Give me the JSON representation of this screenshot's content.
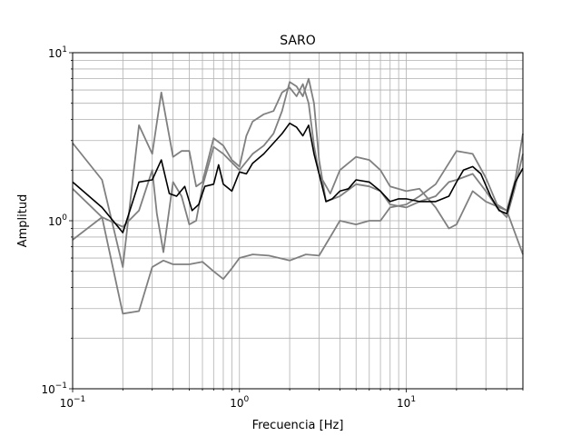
{
  "chart_data": {
    "type": "line",
    "title": "SARO",
    "xlabel": "Frecuencia [Hz]",
    "ylabel": "Amplitud",
    "xscale": "log",
    "yscale": "log",
    "xlim": [
      0.1,
      50
    ],
    "ylim": [
      0.1,
      10
    ],
    "grid": "both major and minor",
    "x_ticks": [
      {
        "value": 0.1,
        "base": "10",
        "exp": "−1"
      },
      {
        "value": 1,
        "base": "10",
        "exp": "0"
      },
      {
        "value": 10,
        "base": "10",
        "exp": "1"
      }
    ],
    "y_ticks": [
      {
        "value": 0.1,
        "base": "10",
        "exp": "−1"
      },
      {
        "value": 1,
        "base": "10",
        "exp": "0"
      },
      {
        "value": 10,
        "base": "10",
        "exp": "1"
      }
    ],
    "series": [
      {
        "color": "#808080",
        "points": [
          [
            0.1,
            2.9
          ],
          [
            0.15,
            1.75
          ],
          [
            0.2,
            0.53
          ],
          [
            0.25,
            3.7
          ],
          [
            0.3,
            2.5
          ],
          [
            0.34,
            5.8
          ],
          [
            0.4,
            2.4
          ],
          [
            0.45,
            2.6
          ],
          [
            0.5,
            2.6
          ],
          [
            0.55,
            1.6
          ],
          [
            0.6,
            1.7
          ],
          [
            0.7,
            3.1
          ],
          [
            0.8,
            2.8
          ],
          [
            0.9,
            2.3
          ],
          [
            1.0,
            2.1
          ],
          [
            1.1,
            3.2
          ],
          [
            1.2,
            3.9
          ],
          [
            1.4,
            4.3
          ],
          [
            1.6,
            4.5
          ],
          [
            1.8,
            5.8
          ],
          [
            2.0,
            6.2
          ],
          [
            2.2,
            5.5
          ],
          [
            2.4,
            6.5
          ],
          [
            2.6,
            5.0
          ],
          [
            2.8,
            2.8
          ],
          [
            3.0,
            1.9
          ],
          [
            3.5,
            1.45
          ],
          [
            4.0,
            2.0
          ],
          [
            5.0,
            2.4
          ],
          [
            6.0,
            2.3
          ],
          [
            7.0,
            2.0
          ],
          [
            8.0,
            1.6
          ],
          [
            10,
            1.5
          ],
          [
            12,
            1.55
          ],
          [
            15,
            1.2
          ],
          [
            18,
            0.9
          ],
          [
            20,
            0.95
          ],
          [
            25,
            1.5
          ],
          [
            30,
            1.3
          ],
          [
            40,
            1.15
          ],
          [
            50,
            0.63
          ]
        ]
      },
      {
        "color": "#808080",
        "points": [
          [
            0.1,
            0.77
          ],
          [
            0.15,
            1.05
          ],
          [
            0.2,
            0.28
          ],
          [
            0.25,
            0.29
          ],
          [
            0.3,
            0.53
          ],
          [
            0.35,
            0.58
          ],
          [
            0.4,
            0.55
          ],
          [
            0.5,
            0.55
          ],
          [
            0.6,
            0.57
          ],
          [
            0.7,
            0.5
          ],
          [
            0.8,
            0.45
          ],
          [
            0.9,
            0.52
          ],
          [
            1.0,
            0.6
          ],
          [
            1.2,
            0.63
          ],
          [
            1.5,
            0.62
          ],
          [
            2.0,
            0.58
          ],
          [
            2.5,
            0.63
          ],
          [
            3.0,
            0.62
          ],
          [
            3.5,
            0.8
          ],
          [
            4.0,
            1.0
          ],
          [
            5.0,
            0.95
          ],
          [
            6.0,
            1.0
          ],
          [
            7.0,
            1.0
          ],
          [
            8.0,
            1.2
          ],
          [
            10,
            1.25
          ],
          [
            12,
            1.4
          ],
          [
            15,
            1.65
          ],
          [
            20,
            2.6
          ],
          [
            25,
            2.5
          ],
          [
            30,
            1.8
          ],
          [
            35,
            1.25
          ],
          [
            40,
            1.15
          ],
          [
            45,
            1.75
          ],
          [
            50,
            3.3
          ]
        ]
      },
      {
        "color": "#808080",
        "points": [
          [
            0.1,
            1.55
          ],
          [
            0.15,
            1.05
          ],
          [
            0.2,
            0.92
          ],
          [
            0.25,
            1.15
          ],
          [
            0.3,
            2.0
          ],
          [
            0.32,
            1.1
          ],
          [
            0.35,
            0.65
          ],
          [
            0.4,
            1.7
          ],
          [
            0.45,
            1.4
          ],
          [
            0.5,
            0.95
          ],
          [
            0.55,
            1.0
          ],
          [
            0.6,
            1.6
          ],
          [
            0.7,
            2.75
          ],
          [
            0.8,
            2.5
          ],
          [
            1.0,
            2.0
          ],
          [
            1.2,
            2.5
          ],
          [
            1.4,
            2.8
          ],
          [
            1.6,
            3.3
          ],
          [
            1.8,
            4.5
          ],
          [
            2.0,
            6.7
          ],
          [
            2.2,
            6.3
          ],
          [
            2.4,
            5.5
          ],
          [
            2.6,
            7.0
          ],
          [
            2.8,
            5.0
          ],
          [
            3.0,
            2.3
          ],
          [
            3.3,
            1.3
          ],
          [
            4.0,
            1.4
          ],
          [
            5.0,
            1.65
          ],
          [
            6.0,
            1.6
          ],
          [
            7.0,
            1.5
          ],
          [
            8.0,
            1.25
          ],
          [
            10,
            1.2
          ],
          [
            12,
            1.3
          ],
          [
            15,
            1.4
          ],
          [
            18,
            1.7
          ],
          [
            20,
            1.75
          ],
          [
            25,
            1.9
          ],
          [
            30,
            1.5
          ],
          [
            35,
            1.2
          ],
          [
            40,
            1.05
          ],
          [
            45,
            1.6
          ],
          [
            50,
            2.5
          ]
        ]
      },
      {
        "color": "#000000",
        "points": [
          [
            0.1,
            1.7
          ],
          [
            0.15,
            1.2
          ],
          [
            0.2,
            0.85
          ],
          [
            0.25,
            1.7
          ],
          [
            0.3,
            1.75
          ],
          [
            0.34,
            2.3
          ],
          [
            0.38,
            1.45
          ],
          [
            0.42,
            1.4
          ],
          [
            0.47,
            1.6
          ],
          [
            0.52,
            1.15
          ],
          [
            0.57,
            1.25
          ],
          [
            0.62,
            1.6
          ],
          [
            0.7,
            1.65
          ],
          [
            0.75,
            2.15
          ],
          [
            0.8,
            1.65
          ],
          [
            0.9,
            1.5
          ],
          [
            1.0,
            1.95
          ],
          [
            1.1,
            1.9
          ],
          [
            1.2,
            2.2
          ],
          [
            1.4,
            2.5
          ],
          [
            1.6,
            2.9
          ],
          [
            1.8,
            3.3
          ],
          [
            2.0,
            3.8
          ],
          [
            2.2,
            3.6
          ],
          [
            2.4,
            3.2
          ],
          [
            2.6,
            3.7
          ],
          [
            2.8,
            2.5
          ],
          [
            3.0,
            1.9
          ],
          [
            3.3,
            1.3
          ],
          [
            3.6,
            1.35
          ],
          [
            4.0,
            1.5
          ],
          [
            4.5,
            1.55
          ],
          [
            5.0,
            1.75
          ],
          [
            6.0,
            1.7
          ],
          [
            7.0,
            1.5
          ],
          [
            8.0,
            1.3
          ],
          [
            9.0,
            1.35
          ],
          [
            10,
            1.35
          ],
          [
            12,
            1.3
          ],
          [
            15,
            1.3
          ],
          [
            18,
            1.4
          ],
          [
            20,
            1.7
          ],
          [
            22,
            2.0
          ],
          [
            25,
            2.1
          ],
          [
            28,
            1.9
          ],
          [
            32,
            1.4
          ],
          [
            36,
            1.15
          ],
          [
            40,
            1.1
          ],
          [
            45,
            1.7
          ],
          [
            50,
            2.05
          ]
        ]
      }
    ]
  }
}
